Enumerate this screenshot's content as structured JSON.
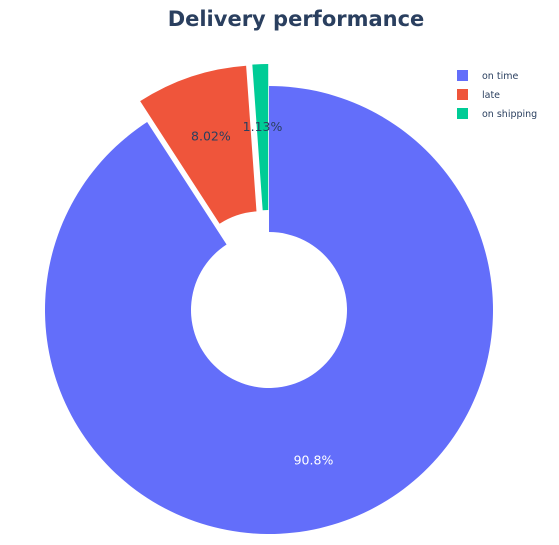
{
  "chart_data": {
    "type": "pie",
    "title": "Delivery performance",
    "hole": true,
    "legend_position": "top-right",
    "slices": [
      {
        "label": "on time",
        "value": 90.8,
        "text": "90.8%",
        "color": "#636efa",
        "pulled": false
      },
      {
        "label": "late",
        "value": 8.02,
        "text": "8.02%",
        "color": "#ef553b",
        "pulled": true
      },
      {
        "label": "on shipping",
        "value": 1.13,
        "text": "1.13%",
        "color": "#00cc96",
        "pulled": true
      }
    ]
  }
}
